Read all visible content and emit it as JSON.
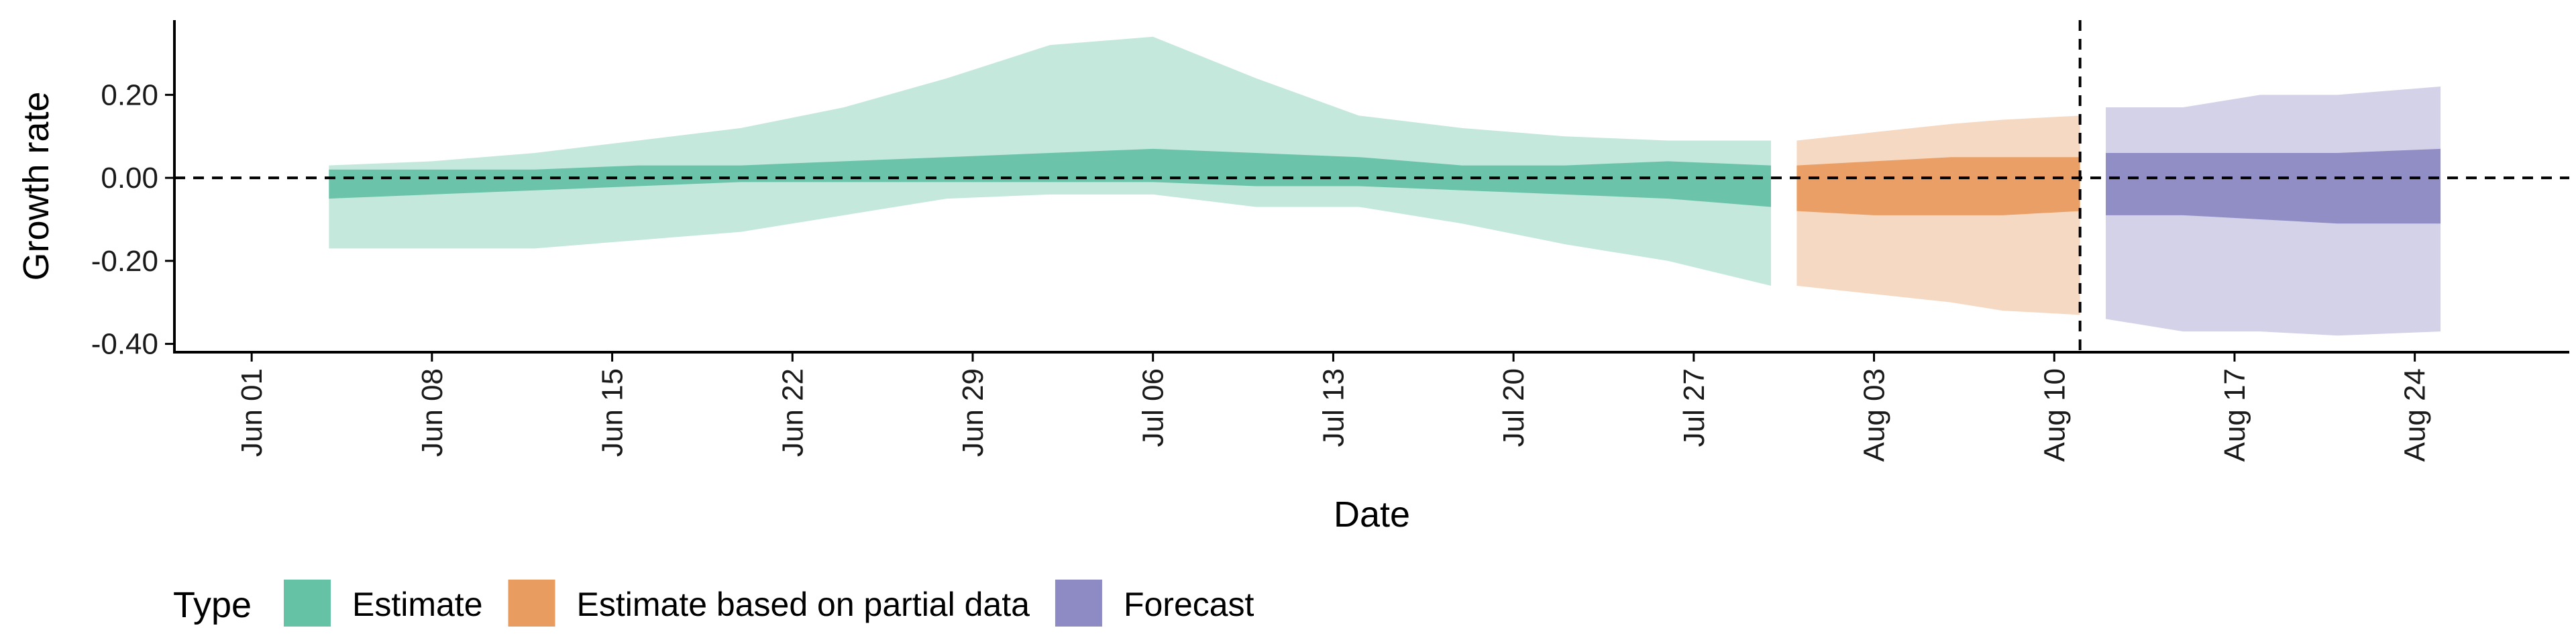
{
  "chart_data": {
    "type": "area",
    "xlabel": "Date",
    "ylabel": "Growth rate",
    "ylim": [
      -0.42,
      0.38
    ],
    "yticks": [
      -0.4,
      -0.2,
      0.0,
      0.2
    ],
    "ytick_labels": [
      "-0.40",
      "-0.20",
      "0.00",
      "0.20"
    ],
    "x_domain": [
      "2021-05-29",
      "2021-08-30"
    ],
    "xticks": [
      "2021-06-01",
      "2021-06-08",
      "2021-06-15",
      "2021-06-22",
      "2021-06-29",
      "2021-07-06",
      "2021-07-13",
      "2021-07-20",
      "2021-07-27",
      "2021-08-03",
      "2021-08-10",
      "2021-08-17",
      "2021-08-24"
    ],
    "xtick_labels": [
      "Jun 01",
      "Jun 08",
      "Jun 15",
      "Jun 22",
      "Jun 29",
      "Jul 06",
      "Jul 13",
      "Jul 20",
      "Jul 27",
      "Aug 03",
      "Aug 10",
      "Aug 17",
      "Aug 24"
    ],
    "reference_lines": {
      "horizontal_y": 0.0,
      "vertical_x": "2021-08-11"
    },
    "legend": {
      "title": "Type",
      "position": "bottom-left"
    },
    "series": [
      {
        "name": "Estimate",
        "color": "#66c2a5",
        "x": [
          "2021-06-04",
          "2021-06-08",
          "2021-06-12",
          "2021-06-16",
          "2021-06-20",
          "2021-06-24",
          "2021-06-28",
          "2021-07-02",
          "2021-07-06",
          "2021-07-10",
          "2021-07-14",
          "2021-07-18",
          "2021-07-22",
          "2021-07-26",
          "2021-07-30"
        ],
        "outer_upper": [
          0.03,
          0.04,
          0.06,
          0.09,
          0.12,
          0.17,
          0.24,
          0.32,
          0.34,
          0.24,
          0.15,
          0.12,
          0.1,
          0.09,
          0.09
        ],
        "outer_lower": [
          -0.17,
          -0.17,
          -0.17,
          -0.15,
          -0.13,
          -0.09,
          -0.05,
          -0.04,
          -0.04,
          -0.07,
          -0.07,
          -0.11,
          -0.16,
          -0.2,
          -0.26
        ],
        "inner_upper": [
          0.02,
          0.02,
          0.02,
          0.03,
          0.03,
          0.04,
          0.05,
          0.06,
          0.07,
          0.06,
          0.05,
          0.03,
          0.03,
          0.04,
          0.03
        ],
        "inner_lower": [
          -0.05,
          -0.04,
          -0.03,
          -0.02,
          -0.01,
          -0.01,
          -0.01,
          -0.01,
          -0.01,
          -0.02,
          -0.02,
          -0.03,
          -0.04,
          -0.05,
          -0.07
        ]
      },
      {
        "name": "Estimate based on partial data",
        "color": "#e89c60",
        "x": [
          "2021-07-31",
          "2021-08-03",
          "2021-08-06",
          "2021-08-08",
          "2021-08-11"
        ],
        "outer_upper": [
          0.09,
          0.11,
          0.13,
          0.14,
          0.15
        ],
        "outer_lower": [
          -0.26,
          -0.28,
          -0.3,
          -0.32,
          -0.33
        ],
        "inner_upper": [
          0.03,
          0.04,
          0.05,
          0.05,
          0.05
        ],
        "inner_lower": [
          -0.08,
          -0.09,
          -0.09,
          -0.09,
          -0.08
        ]
      },
      {
        "name": "Forecast",
        "color": "#8d8ac4",
        "x": [
          "2021-08-12",
          "2021-08-15",
          "2021-08-18",
          "2021-08-21",
          "2021-08-25"
        ],
        "outer_upper": [
          0.17,
          0.17,
          0.2,
          0.2,
          0.22
        ],
        "outer_lower": [
          -0.34,
          -0.37,
          -0.37,
          -0.38,
          -0.37
        ],
        "inner_upper": [
          0.06,
          0.06,
          0.06,
          0.06,
          0.07
        ],
        "inner_lower": [
          -0.09,
          -0.09,
          -0.1,
          -0.11,
          -0.11
        ]
      }
    ]
  }
}
